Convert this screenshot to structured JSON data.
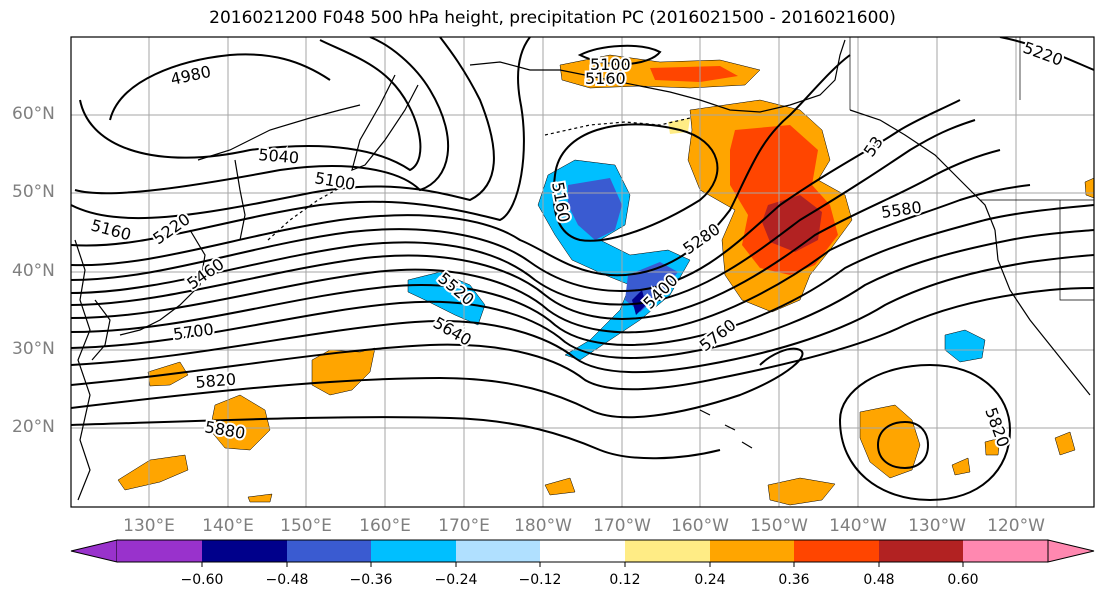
{
  "title": "2016021200 F048 500 hPa height, precipitation PC (2016021500 - 2016021600)",
  "lat_labels": [
    "60°N",
    "50°N",
    "40°N",
    "30°N",
    "20°N"
  ],
  "lon_labels": [
    "130°E",
    "140°E",
    "150°E",
    "160°E",
    "170°E",
    "180°W",
    "170°W",
    "160°W",
    "150°W",
    "140°W",
    "130°W",
    "120°W"
  ],
  "contour_labels": {
    "c4980": "4980",
    "c5040": "5040",
    "c5100": "5100",
    "c5160": "5160",
    "c5220": "5220",
    "c5160b": "5160",
    "c5160top": "5160",
    "c5100top": "5100",
    "c5220ne": "5220",
    "c5280": "5280",
    "c5400": "5400",
    "c5460": "5460",
    "c5520": "5520",
    "c5580": "5580",
    "c5640": "5640",
    "c5700": "5700",
    "c5760": "5760",
    "c5820": "5820",
    "c5820b": "5820",
    "c5880": "5880",
    "c53": "53"
  },
  "colorbar": {
    "colors": [
      "#9932cc",
      "#00008b",
      "#3a5bd1",
      "#00bfff",
      "#b0e0ff",
      "#ffffff",
      "#ffec85",
      "#ffa500",
      "#ff4500",
      "#b22222",
      "#ff88b0"
    ],
    "ticks": [
      "−0.60",
      "−0.48",
      "−0.36",
      "−0.24",
      "−0.12",
      "0.12",
      "0.24",
      "0.36",
      "0.48",
      "0.60"
    ]
  }
}
